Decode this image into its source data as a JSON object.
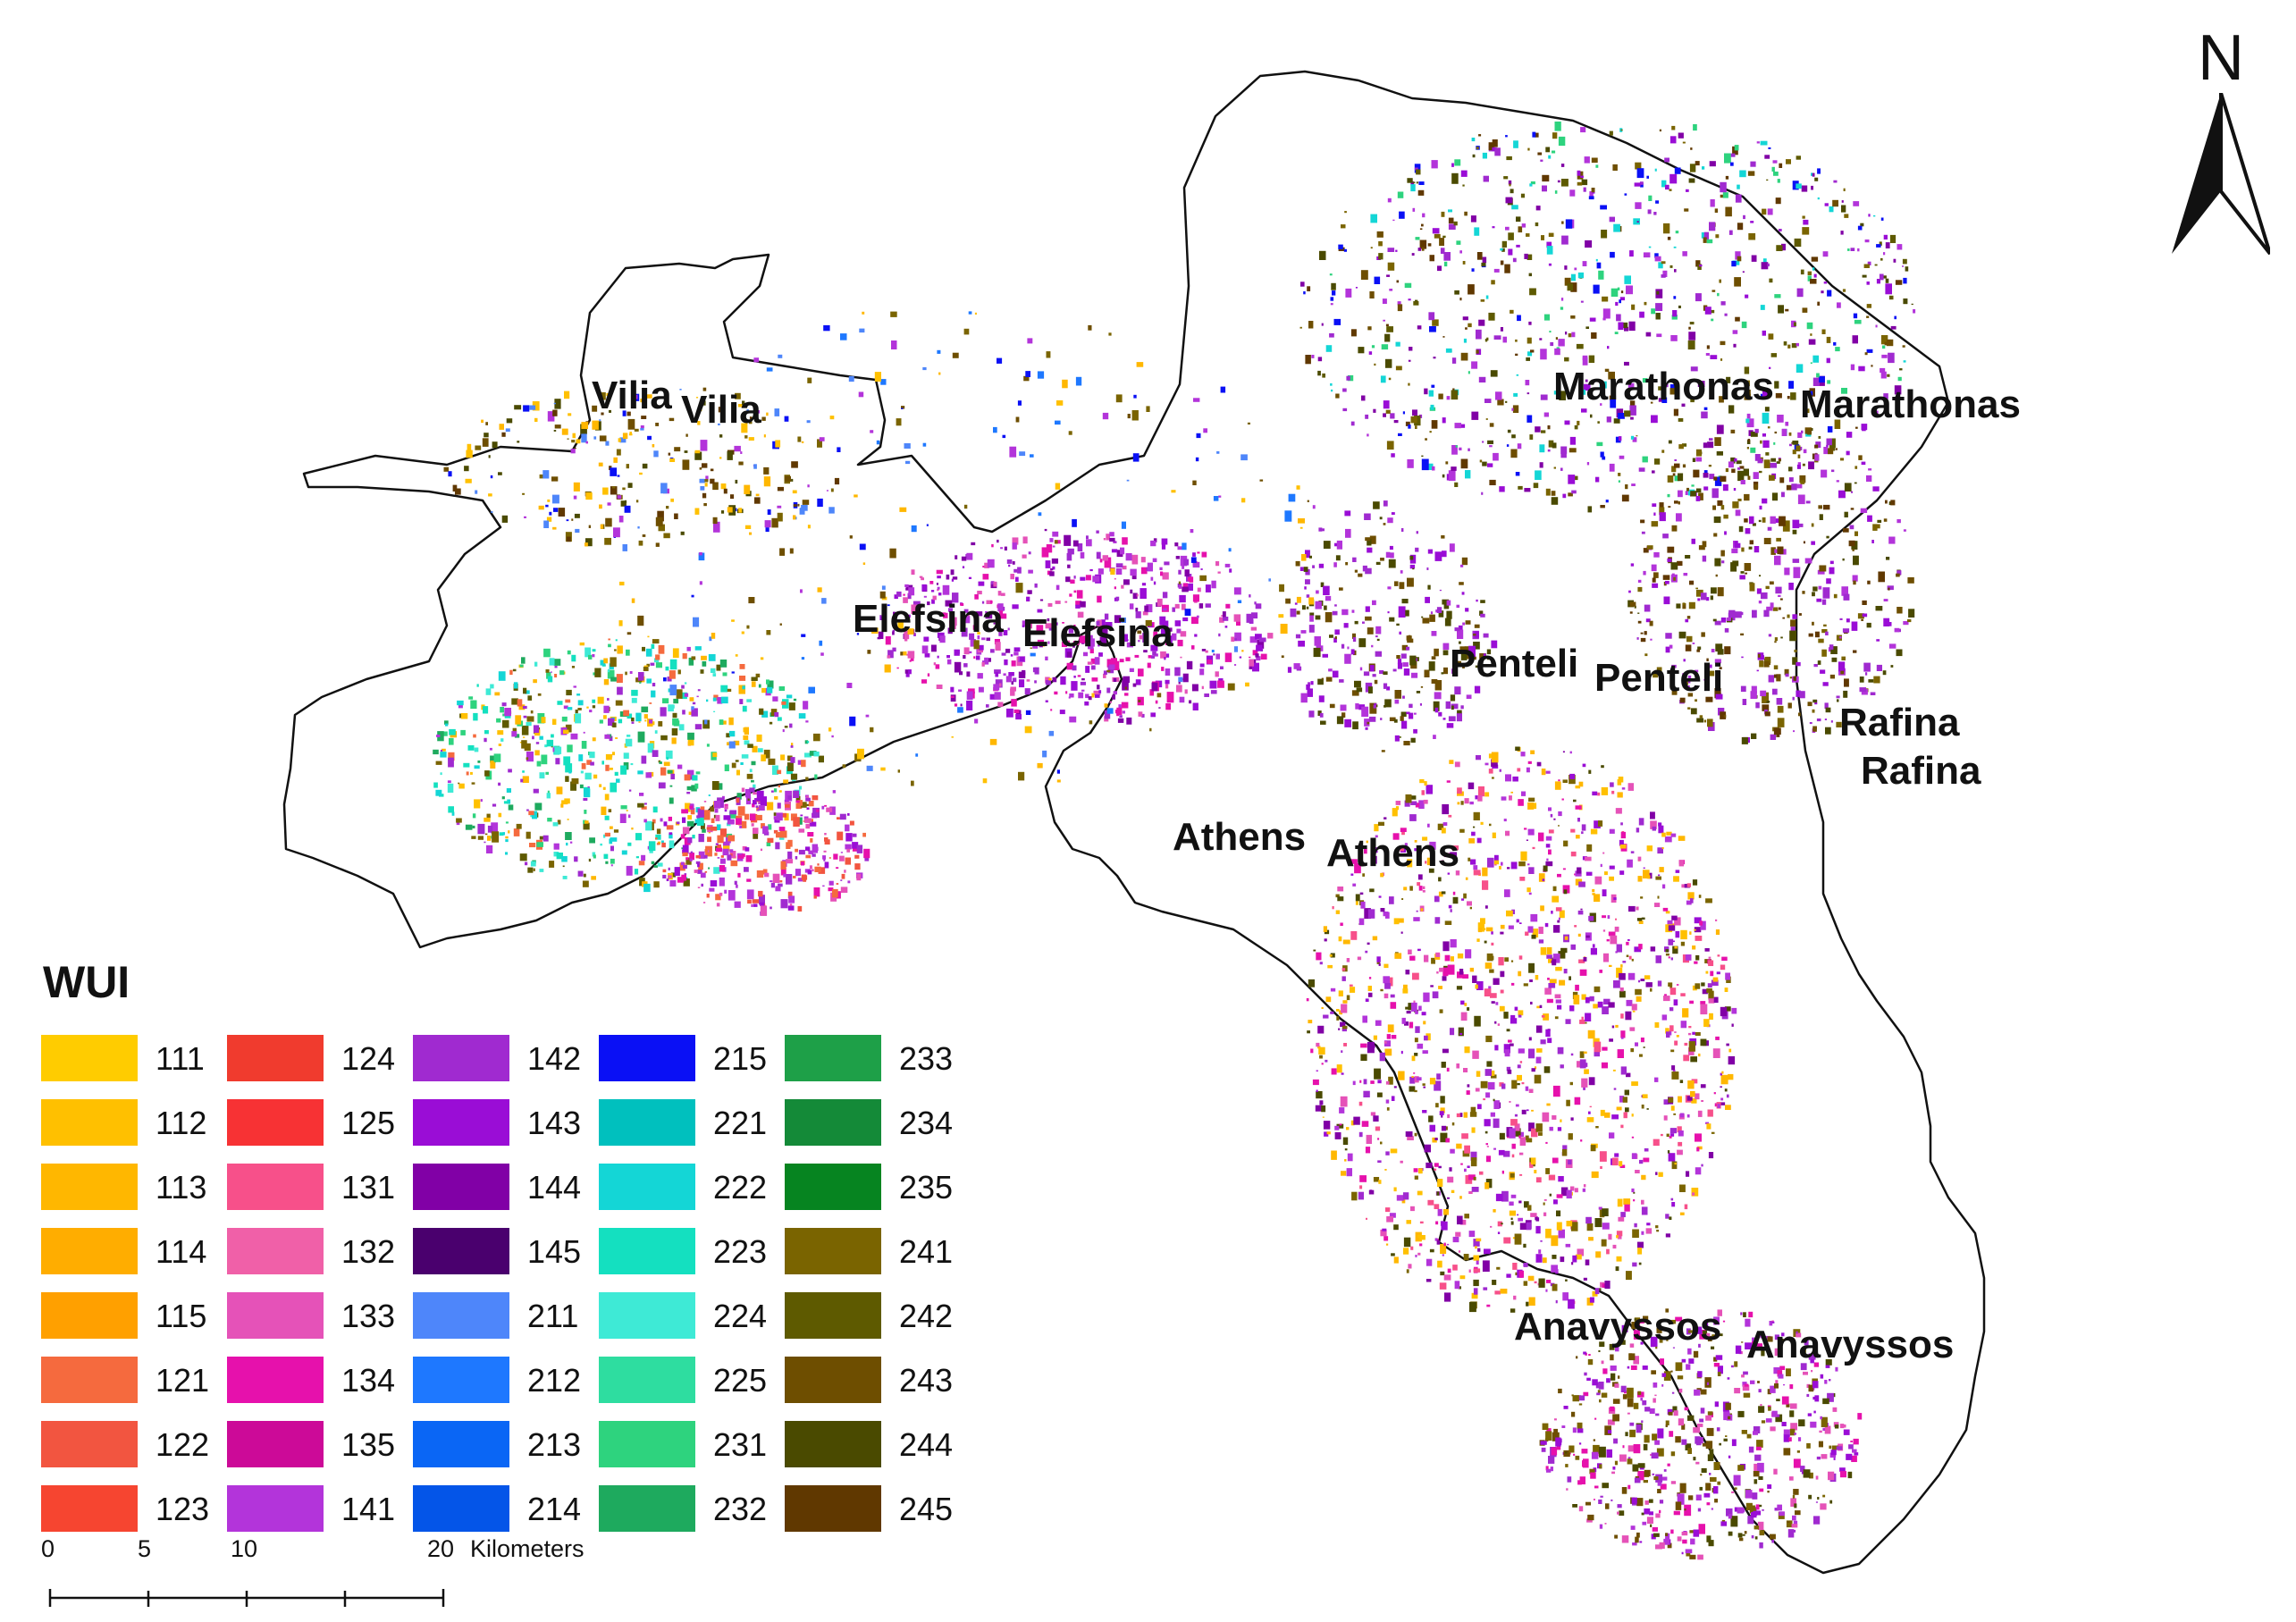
{
  "legend": {
    "title": "WUI",
    "classes": [
      {
        "code": "111",
        "color": "#FFCC00"
      },
      {
        "code": "112",
        "color": "#FFC000"
      },
      {
        "code": "113",
        "color": "#FFB700"
      },
      {
        "code": "114",
        "color": "#FFAD00"
      },
      {
        "code": "115",
        "color": "#FFA000"
      },
      {
        "code": "121",
        "color": "#F56A3E"
      },
      {
        "code": "122",
        "color": "#F25540"
      },
      {
        "code": "123",
        "color": "#F64530"
      },
      {
        "code": "124",
        "color": "#F03B2E"
      },
      {
        "code": "125",
        "color": "#F73234"
      },
      {
        "code": "131",
        "color": "#F7508A"
      },
      {
        "code": "132",
        "color": "#F060A8"
      },
      {
        "code": "133",
        "color": "#E552B8"
      },
      {
        "code": "134",
        "color": "#E611AC"
      },
      {
        "code": "135",
        "color": "#CC0A98"
      },
      {
        "code": "141",
        "color": "#B334DA"
      },
      {
        "code": "142",
        "color": "#A02AD0"
      },
      {
        "code": "143",
        "color": "#9A0DD6"
      },
      {
        "code": "144",
        "color": "#8100A6"
      },
      {
        "code": "145",
        "color": "#4A006E"
      },
      {
        "code": "211",
        "color": "#4E86FA"
      },
      {
        "code": "212",
        "color": "#1E78FF"
      },
      {
        "code": "213",
        "color": "#0A66F5"
      },
      {
        "code": "214",
        "color": "#0455E8"
      },
      {
        "code": "215",
        "color": "#0A10F5"
      },
      {
        "code": "221",
        "color": "#00C0BE"
      },
      {
        "code": "222",
        "color": "#14D6D6"
      },
      {
        "code": "223",
        "color": "#14E0C0"
      },
      {
        "code": "224",
        "color": "#3EEAD6"
      },
      {
        "code": "225",
        "color": "#2EDDA0"
      },
      {
        "code": "231",
        "color": "#2ED37E"
      },
      {
        "code": "232",
        "color": "#1EAA5E"
      },
      {
        "code": "233",
        "color": "#1EA048"
      },
      {
        "code": "234",
        "color": "#148A38"
      },
      {
        "code": "235",
        "color": "#068420"
      },
      {
        "code": "241",
        "color": "#7A6400"
      },
      {
        "code": "242",
        "color": "#5E5A00"
      },
      {
        "code": "243",
        "color": "#6E4E00"
      },
      {
        "code": "244",
        "color": "#4A4A00"
      },
      {
        "code": "245",
        "color": "#603800"
      }
    ]
  },
  "places": [
    {
      "name": "Vilia"
    },
    {
      "name": "Vilia"
    },
    {
      "name": "Marathonas"
    },
    {
      "name": "Marathonas"
    },
    {
      "name": "Elefsina"
    },
    {
      "name": "Elefsina"
    },
    {
      "name": "Penteli"
    },
    {
      "name": "Penteli"
    },
    {
      "name": "Rafina"
    },
    {
      "name": "Rafina"
    },
    {
      "name": "Athens"
    },
    {
      "name": "Athens"
    },
    {
      "name": "Anavyssos"
    },
    {
      "name": "Anavyssos"
    }
  ],
  "scale_bar": {
    "ticks": [
      "0",
      "5",
      "10",
      "20"
    ],
    "unit": "Kilometers"
  },
  "north_arrow": {
    "label": "N",
    "icon": "north-arrow-icon"
  }
}
